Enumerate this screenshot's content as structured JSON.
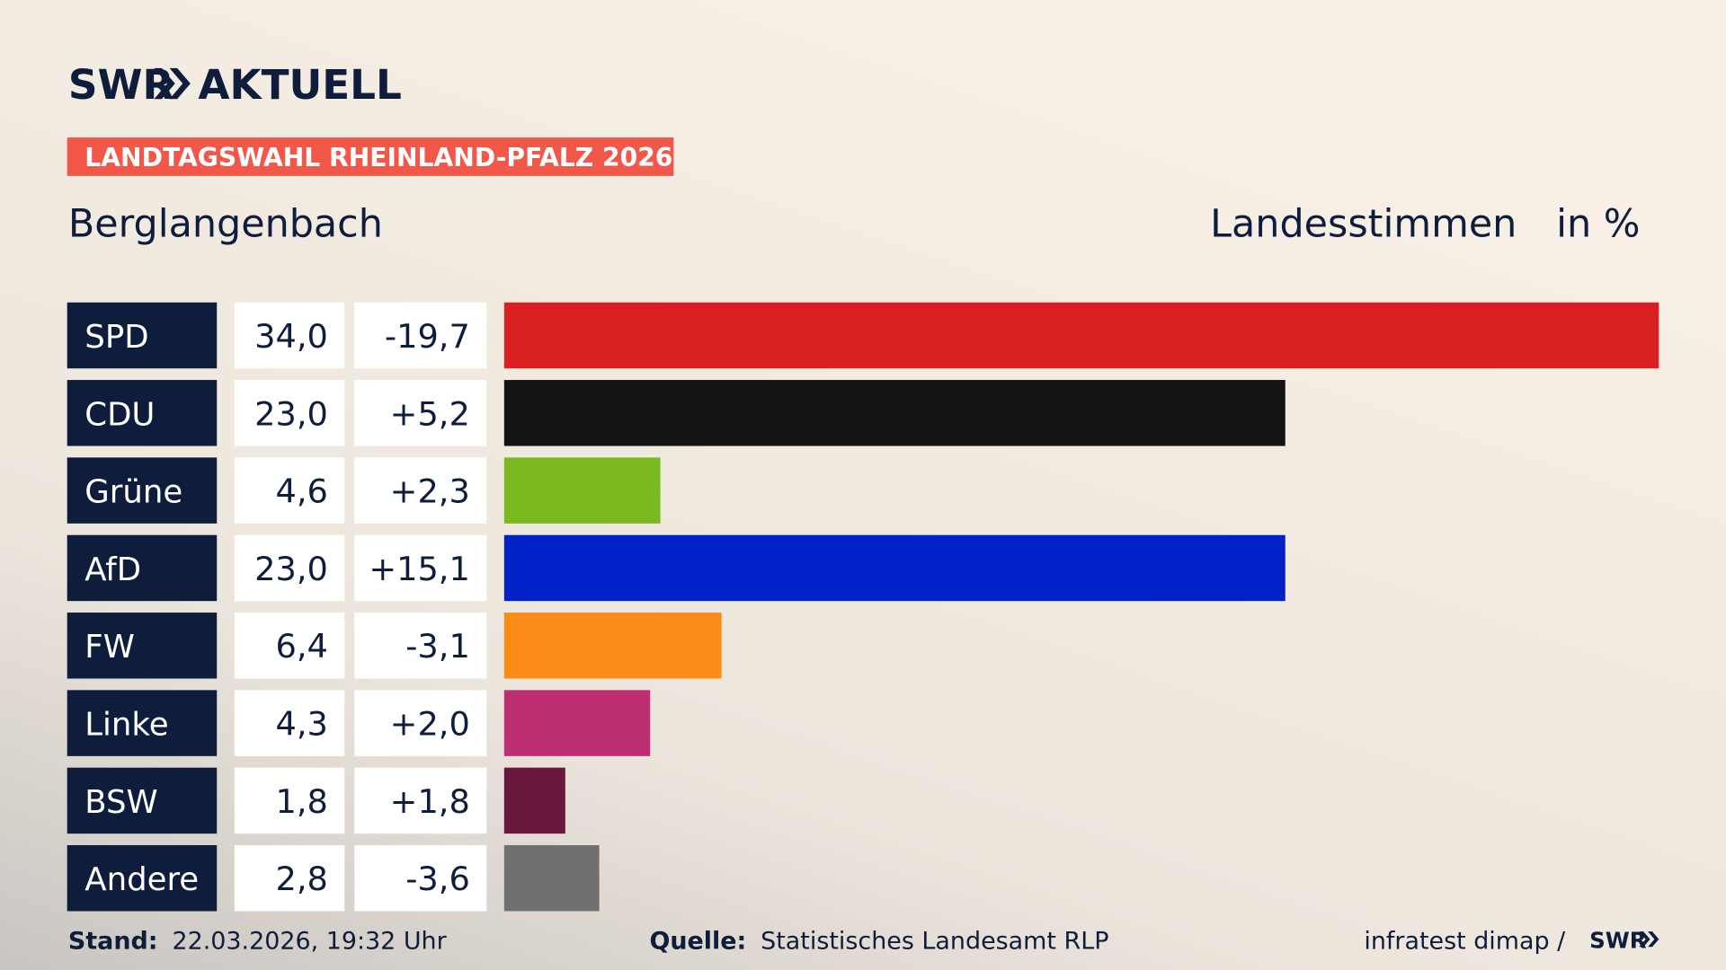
{
  "chart_data": {
    "type": "bar",
    "brand": "SWR",
    "brand_title": "AKTUELL",
    "tag": "LANDTAGSWAHL RHEINLAND-PFALZ 2026",
    "title": "Berglangenbach",
    "value_header": "Landesstimmen",
    "unit_header": "in %",
    "categories": [
      "SPD",
      "CDU",
      "Grüne",
      "AfD",
      "FW",
      "Linke",
      "BSW",
      "Andere"
    ],
    "values": [
      34.0,
      23.0,
      4.6,
      23.0,
      6.4,
      4.3,
      1.8,
      2.8
    ],
    "value_labels": [
      "34,0",
      "23,0",
      "4,6",
      "23,0",
      "6,4",
      "4,3",
      "1,8",
      "2,8"
    ],
    "changes": [
      -19.7,
      5.2,
      2.3,
      15.1,
      -3.1,
      2.0,
      1.8,
      -3.6
    ],
    "change_labels": [
      "-19,7",
      "+5,2",
      "+2,3",
      "+15,1",
      "-3,1",
      "+2,0",
      "+1,8",
      "-3,6"
    ],
    "colors": [
      "#d91f1f",
      "#141414",
      "#7aba1e",
      "#0021c8",
      "#fb8c17",
      "#bd2f72",
      "#69173b",
      "#707070"
    ],
    "xlim": [
      0,
      34
    ],
    "footer": {
      "stand_label": "Stand:",
      "stand": "22.03.2026, 19:32 Uhr",
      "source_label": "Quelle:",
      "source": "Statistisches Landesamt RLP",
      "credit": "infratest dimap /",
      "credit_brand": "SWR"
    }
  }
}
